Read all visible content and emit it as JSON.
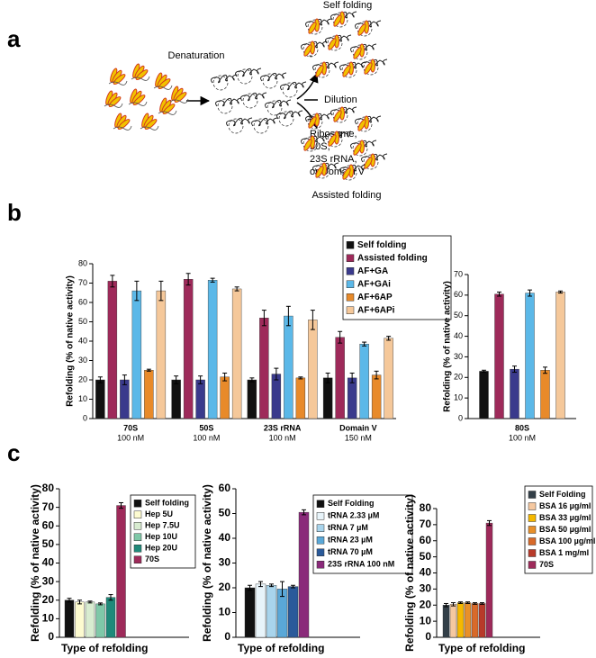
{
  "panel_labels": [
    "a",
    "b",
    "c"
  ],
  "diagram": {
    "denaturation": "Denaturation",
    "self_folding": "Self folding",
    "minus": "-",
    "dilution": "Dilution",
    "plus": "+",
    "assisted_conditions": [
      "Ribosome,",
      "50S,",
      "23S rRNA,",
      "or Domain V"
    ],
    "assisted_folding": "Assisted folding"
  },
  "chart_data": [
    {
      "type": "bar",
      "y_label": "Refolding (% of native activity)",
      "categories": [
        "70S",
        "50S",
        "23S rRNA",
        "Domain V"
      ],
      "category_sublabels": [
        "100 nM",
        "100 nM",
        "100 nM",
        "150 nM"
      ],
      "ylim": [
        0,
        80
      ],
      "yticks": [
        0,
        10,
        20,
        30,
        40,
        50,
        60,
        70,
        80
      ],
      "legend": "top-right",
      "series": [
        {
          "name": "Self folding",
          "color": "#111111",
          "values": [
            20,
            20,
            20,
            21
          ],
          "errors": [
            1.5,
            2,
            1,
            2.5
          ]
        },
        {
          "name": "Assisted folding",
          "color": "#9e2a5a",
          "values": [
            71,
            72,
            52,
            42
          ],
          "errors": [
            3,
            3,
            4,
            3
          ]
        },
        {
          "name": "AF+GA",
          "color": "#3a3a8c",
          "values": [
            20,
            20,
            23,
            21
          ],
          "errors": [
            2.5,
            2,
            3,
            2.5
          ]
        },
        {
          "name": "AF+GAi",
          "color": "#5bb8e8",
          "values": [
            66,
            71.5,
            53,
            38.5
          ],
          "errors": [
            5,
            1,
            5,
            1
          ]
        },
        {
          "name": "AF+6AP",
          "color": "#e88a2a",
          "values": [
            25,
            21.5,
            21,
            22.5
          ],
          "errors": [
            0.5,
            2,
            0.5,
            2
          ]
        },
        {
          "name": "AF+6APi",
          "color": "#f5c89a",
          "values": [
            66,
            67,
            51,
            41.5
          ],
          "errors": [
            5,
            1,
            5,
            1
          ]
        }
      ]
    },
    {
      "type": "bar",
      "y_label": "Refolding (% of native activity)",
      "categories": [
        "80S"
      ],
      "category_sublabels": [
        "100 nM"
      ],
      "ylim": [
        0,
        70
      ],
      "yticks": [
        0,
        10,
        20,
        30,
        40,
        50,
        60,
        70
      ],
      "series": [
        {
          "color": "#111111",
          "values": [
            23
          ],
          "errors": [
            0.5
          ]
        },
        {
          "color": "#9e2a5a",
          "values": [
            60.5
          ],
          "errors": [
            1
          ]
        },
        {
          "color": "#3a3a8c",
          "values": [
            24
          ],
          "errors": [
            1.5
          ]
        },
        {
          "color": "#5bb8e8",
          "values": [
            61
          ],
          "errors": [
            1.5
          ]
        },
        {
          "color": "#e88a2a",
          "values": [
            23.5
          ],
          "errors": [
            1.5
          ]
        },
        {
          "color": "#f5c89a",
          "values": [
            61.5
          ],
          "errors": [
            0.5
          ]
        }
      ]
    },
    {
      "type": "bar",
      "y_label": "Refolding (% of native activity)",
      "x_label": "Type of refolding",
      "categories": [
        null
      ],
      "ylim": [
        0,
        80
      ],
      "yticks": [
        0,
        10,
        20,
        30,
        40,
        50,
        60,
        70,
        80
      ],
      "legend": "top-right",
      "series": [
        {
          "name": "Self folding",
          "color": "#111111",
          "values": [
            20
          ],
          "errors": [
            1
          ]
        },
        {
          "name": "Hep 5U",
          "color": "#fdfbd0",
          "values": [
            19
          ],
          "errors": [
            1
          ]
        },
        {
          "name": "Hep 7.5U",
          "color": "#d8ecd0",
          "values": [
            19
          ],
          "errors": [
            0.5
          ]
        },
        {
          "name": "Hep 10U",
          "color": "#7fc8a8",
          "values": [
            18
          ],
          "errors": [
            0.5
          ]
        },
        {
          "name": "Hep 20U",
          "color": "#1f8a7a",
          "values": [
            21.5
          ],
          "errors": [
            1.5
          ]
        },
        {
          "name": "70S",
          "color": "#9e2a5a",
          "values": [
            71
          ],
          "errors": [
            1.5
          ]
        }
      ]
    },
    {
      "type": "bar",
      "y_label": "Refolding (% of native activity)",
      "x_label": "Type of refolding",
      "categories": [
        null
      ],
      "ylim": [
        0,
        60
      ],
      "yticks": [
        0,
        10,
        20,
        30,
        40,
        50,
        60
      ],
      "legend": "top-right",
      "series": [
        {
          "name": "Self Folding",
          "color": "#111111",
          "values": [
            20
          ],
          "errors": [
            1
          ]
        },
        {
          "name": "tRNA 2.33 µM",
          "color": "#e8f4fa",
          "values": [
            21.5
          ],
          "errors": [
            1
          ]
        },
        {
          "name": "tRNA 7 µM",
          "color": "#a8d4ec",
          "values": [
            21
          ],
          "errors": [
            0.5
          ]
        },
        {
          "name": "tRNA 23 µM",
          "color": "#5aa8d8",
          "values": [
            19.5
          ],
          "errors": [
            3
          ]
        },
        {
          "name": "tRNA 70 µM",
          "color": "#2a5a9a",
          "values": [
            20.5
          ],
          "errors": [
            0.5
          ]
        },
        {
          "name": "23S rRNA 100 nM",
          "color": "#8a2a7a",
          "values": [
            50.5
          ],
          "errors": [
            1
          ]
        }
      ]
    },
    {
      "type": "bar",
      "y_label": "Refolding (% of native activity)",
      "x_label": "Type of refolding",
      "categories": [
        null
      ],
      "ylim": [
        0,
        80
      ],
      "yticks": [
        0,
        10,
        20,
        30,
        40,
        50,
        60,
        70,
        80
      ],
      "legend": "top-right",
      "series": [
        {
          "name": "Self Folding",
          "color": "#333f48",
          "values": [
            20
          ],
          "errors": [
            1
          ]
        },
        {
          "name": "BSA 16 µg/ml",
          "color": "#f5c8a0",
          "values": [
            20.5
          ],
          "errors": [
            1
          ]
        },
        {
          "name": "BSA 33 µg/ml",
          "color": "#f5b800",
          "values": [
            21.5
          ],
          "errors": [
            0.5
          ]
        },
        {
          "name": "BSA 50 µg/ml",
          "color": "#e8902a",
          "values": [
            21.5
          ],
          "errors": [
            0.5
          ]
        },
        {
          "name": "BSA 100 µg/ml",
          "color": "#d86a2a",
          "values": [
            21
          ],
          "errors": [
            0.5
          ]
        },
        {
          "name": "BSA 1 mg/ml",
          "color": "#b83a2a",
          "values": [
            21
          ],
          "errors": [
            0.5
          ]
        },
        {
          "name": "70S",
          "color": "#9e2a5a",
          "values": [
            71
          ],
          "errors": [
            1.5
          ]
        }
      ]
    }
  ]
}
